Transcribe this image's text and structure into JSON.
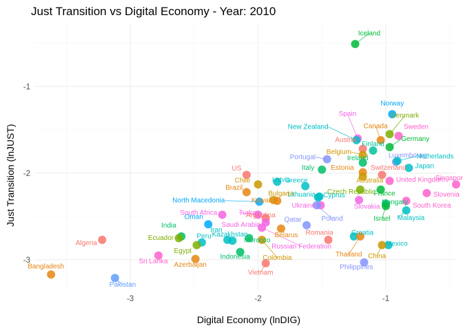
{
  "chart_data": {
    "type": "scatter",
    "title": "Just Transition vs Digital Economy - Year: 2010",
    "xlabel": "Digital Economy (lnDIG)",
    "ylabel": "Just Transition (lnJUST)",
    "xlim": [
      -3.75,
      -0.45
    ],
    "ylim": [
      -3.35,
      -0.28
    ],
    "x_ticks": [
      -3,
      -2,
      -1
    ],
    "y_ticks": [
      -3,
      -2,
      -1
    ],
    "x_tick_labels": [
      "-3",
      "-2",
      "-1"
    ],
    "y_tick_labels": [
      "-3",
      "-2",
      "-1"
    ],
    "grid": true,
    "legend": "none",
    "points": [
      {
        "name": "Iceland",
        "x": -1.24,
        "y": -0.51,
        "color": "#00BA38",
        "lx": -1.13,
        "ly": -0.41,
        "anchor": "middle"
      },
      {
        "name": "Norway",
        "x": -0.95,
        "y": -1.32,
        "color": "#00A9FF",
        "lx": -0.95,
        "ly": -1.22,
        "anchor": "middle"
      },
      {
        "name": "Denmark",
        "x": -0.97,
        "y": -1.55,
        "color": "#7CAE00",
        "lx": -0.85,
        "ly": -1.36,
        "anchor": "middle"
      },
      {
        "name": "Spain",
        "x": -1.22,
        "y": -1.6,
        "color": "#F564E3",
        "lx": -1.3,
        "ly": -1.34,
        "anchor": "middle"
      },
      {
        "name": "New Zealand",
        "x": -1.23,
        "y": -1.62,
        "color": "#00BFC4",
        "lx": -1.45,
        "ly": -1.49,
        "anchor": "end"
      },
      {
        "name": "Canada",
        "x": -1.04,
        "y": -1.62,
        "color": "#E68613",
        "lx": -1.08,
        "ly": -1.48,
        "anchor": "middle"
      },
      {
        "name": "Sweden",
        "x": -0.9,
        "y": -1.57,
        "color": "#FF61CC",
        "lx": -0.86,
        "ly": -1.49,
        "anchor": "start"
      },
      {
        "name": "Austria",
        "x": -1.18,
        "y": -1.72,
        "color": "#F8766D",
        "lx": -1.23,
        "ly": -1.64,
        "anchor": "end"
      },
      {
        "name": "Germany",
        "x": -0.97,
        "y": -1.7,
        "color": "#00BA38",
        "lx": -0.88,
        "ly": -1.63,
        "anchor": "start"
      },
      {
        "name": "Finland",
        "x": -1.1,
        "y": -1.74,
        "color": "#00C19A",
        "lx": -1.1,
        "ly": -1.69,
        "anchor": "middle"
      },
      {
        "name": "Belgium",
        "x": -1.18,
        "y": -1.79,
        "color": "#CD9600",
        "lx": -1.27,
        "ly": -1.78,
        "anchor": "end"
      },
      {
        "name": "Ireland",
        "x": -1.18,
        "y": -1.88,
        "color": "#00BE67",
        "lx": -1.22,
        "ly": -1.85,
        "anchor": "middle"
      },
      {
        "name": "Luxembourg",
        "x": -0.92,
        "y": -1.87,
        "color": "#8494FF",
        "lx": -0.98,
        "ly": -1.82,
        "anchor": "start"
      },
      {
        "name": "Netherlands",
        "x": -0.91,
        "y": -1.86,
        "color": "#00BFC4",
        "lx": -0.76,
        "ly": -1.83,
        "anchor": "start"
      },
      {
        "name": "Portugal",
        "x": -1.46,
        "y": -1.84,
        "color": "#8494FF",
        "lx": -1.55,
        "ly": -1.84,
        "anchor": "end"
      },
      {
        "name": "Japan",
        "x": -0.82,
        "y": -1.94,
        "color": "#00BFC4",
        "lx": -0.77,
        "ly": -1.94,
        "anchor": "start"
      },
      {
        "name": "Switzerland",
        "x": -1.03,
        "y": -2.02,
        "color": "#F8766D",
        "lx": -0.98,
        "ly": -1.96,
        "anchor": "middle"
      },
      {
        "name": "Estonia",
        "x": -1.18,
        "y": -1.99,
        "color": "#E68613",
        "lx": -1.25,
        "ly": -1.96,
        "anchor": "end"
      },
      {
        "name": "Italy",
        "x": -1.5,
        "y": -1.96,
        "color": "#00BE67",
        "lx": -1.56,
        "ly": -1.96,
        "anchor": "end"
      },
      {
        "name": "US",
        "x": -2.09,
        "y": -2.02,
        "color": "#F8766D",
        "lx": -2.13,
        "ly": -1.97,
        "anchor": "end"
      },
      {
        "name": "Singapore",
        "x": -0.45,
        "y": -2.13,
        "color": "#FF61CC",
        "lx": -0.49,
        "ly": -2.08,
        "anchor": "middle"
      },
      {
        "name": "Australia",
        "x": -1.18,
        "y": -2.04,
        "color": "#CD9600",
        "lx": -1.23,
        "ly": -2.11,
        "anchor": "start"
      },
      {
        "name": "United Kingdom",
        "x": -0.97,
        "y": -2.09,
        "color": "#FF61CC",
        "lx": -0.92,
        "ly": -2.1,
        "anchor": "start"
      },
      {
        "name": "Latvia",
        "x": -1.85,
        "y": -2.1,
        "color": "#00BFC4",
        "lx": -1.89,
        "ly": -2.1,
        "anchor": "start"
      },
      {
        "name": "Chile",
        "x": -2.0,
        "y": -2.13,
        "color": "#CD9600",
        "lx": -2.06,
        "ly": -2.11,
        "anchor": "end"
      },
      {
        "name": "Greece",
        "x": -1.63,
        "y": -2.15,
        "color": "#00BFC4",
        "lx": -1.7,
        "ly": -2.11,
        "anchor": "middle"
      },
      {
        "name": "Czech Republic",
        "x": -1.2,
        "y": -2.19,
        "color": "#7CAE00",
        "lx": -1.27,
        "ly": -2.24,
        "anchor": "middle"
      },
      {
        "name": "France",
        "x": -1.04,
        "y": -2.19,
        "color": "#00BA38",
        "lx": -1.01,
        "ly": -2.26,
        "anchor": "middle"
      },
      {
        "name": "Slovenia",
        "x": -0.68,
        "y": -2.23,
        "color": "#FF61CC",
        "lx": -0.63,
        "ly": -2.27,
        "anchor": "start"
      },
      {
        "name": "Brazil",
        "x": -2.09,
        "y": -2.22,
        "color": "#E68613",
        "lx": -2.12,
        "ly": -2.19,
        "anchor": "end"
      },
      {
        "name": "Lithuania",
        "x": -1.52,
        "y": -2.27,
        "color": "#00BFC4",
        "lx": -1.55,
        "ly": -2.27,
        "anchor": "end"
      },
      {
        "name": "Cyprus",
        "x": -1.53,
        "y": -2.28,
        "color": "#00BFC4",
        "lx": -1.49,
        "ly": -2.28,
        "anchor": "start"
      },
      {
        "name": "Bulgaria",
        "x": -1.88,
        "y": -2.31,
        "color": "#CD9600",
        "lx": -1.92,
        "ly": -2.26,
        "anchor": "start"
      },
      {
        "name": "Hungary",
        "x": -1.0,
        "y": -2.35,
        "color": "#00BE67",
        "lx": -1.03,
        "ly": -2.36,
        "anchor": "start"
      },
      {
        "name": "South Korea",
        "x": -0.84,
        "y": -2.32,
        "color": "#FF61CC",
        "lx": -0.79,
        "ly": -2.4,
        "anchor": "start"
      },
      {
        "name": "Slovakia",
        "x": -1.21,
        "y": -2.31,
        "color": "#F564E3",
        "lx": -1.25,
        "ly": -2.41,
        "anchor": "start"
      },
      {
        "name": "Kuwait",
        "x": -1.85,
        "y": -2.32,
        "color": "#E68613",
        "lx": -1.89,
        "ly": -2.34,
        "anchor": "end"
      },
      {
        "name": "North Macedonia",
        "x": -1.99,
        "y": -2.33,
        "color": "#00A9FF",
        "lx": -2.26,
        "ly": -2.34,
        "anchor": "end"
      },
      {
        "name": "Ukraine",
        "x": -1.51,
        "y": -2.37,
        "color": "#F564E3",
        "lx": -1.55,
        "ly": -2.4,
        "anchor": "end"
      },
      {
        "name": "South Africa",
        "x": -2.28,
        "y": -2.48,
        "color": "#F564E3",
        "lx": -2.32,
        "ly": -2.48,
        "anchor": "end"
      },
      {
        "name": "Turkey",
        "x": -2.0,
        "y": -2.48,
        "color": "#F564E3",
        "lx": -2.15,
        "ly": -2.48,
        "anchor": "start"
      },
      {
        "name": "Argentina",
        "x": -1.94,
        "y": -2.52,
        "color": "#F8766D",
        "lx": -1.98,
        "ly": -2.51,
        "anchor": "middle"
      },
      {
        "name": "Malaysia",
        "x": -0.84,
        "y": -2.43,
        "color": "#00BFC4",
        "lx": -0.91,
        "ly": -2.54,
        "anchor": "start"
      },
      {
        "name": "Israel",
        "x": -1.0,
        "y": -2.38,
        "color": "#00BA38",
        "lx": -1.03,
        "ly": -2.55,
        "anchor": "middle"
      },
      {
        "name": "Oman",
        "x": -2.39,
        "y": -2.59,
        "color": "#00A9FF",
        "lx": -2.43,
        "ly": -2.53,
        "anchor": "end"
      },
      {
        "name": "Qatar",
        "x": -1.62,
        "y": -2.6,
        "color": "#8494FF",
        "lx": -1.66,
        "ly": -2.56,
        "anchor": "end"
      },
      {
        "name": "Poland",
        "x": -1.54,
        "y": -2.37,
        "color": "#8494FF",
        "lx": -1.42,
        "ly": -2.55,
        "anchor": "middle"
      },
      {
        "name": "Saudi Arabia",
        "x": -1.94,
        "y": -2.57,
        "color": "#F564E3",
        "lx": -1.98,
        "ly": -2.62,
        "anchor": "end"
      },
      {
        "name": "India",
        "x": -2.6,
        "y": -2.73,
        "color": "#00BE67",
        "lx": -2.64,
        "ly": -2.63,
        "anchor": "end"
      },
      {
        "name": "Iran",
        "x": -2.24,
        "y": -2.77,
        "color": "#00BFC4",
        "lx": -2.28,
        "ly": -2.68,
        "anchor": "end"
      },
      {
        "name": "Belarus",
        "x": -1.82,
        "y": -2.64,
        "color": "#E68613",
        "lx": -1.87,
        "ly": -2.74,
        "anchor": "start"
      },
      {
        "name": "Romania",
        "x": -1.45,
        "y": -2.77,
        "color": "#F8766D",
        "lx": -1.52,
        "ly": -2.71,
        "anchor": "middle"
      },
      {
        "name": "Croatia",
        "x": -1.25,
        "y": -2.73,
        "color": "#00BFC4",
        "lx": -1.27,
        "ly": -2.71,
        "anchor": "start"
      },
      {
        "name": "Kazakhstan",
        "x": -2.2,
        "y": -2.78,
        "color": "#00BFC4",
        "lx": -2.22,
        "ly": -2.73,
        "anchor": "middle"
      },
      {
        "name": "Peru",
        "x": -2.44,
        "y": -2.8,
        "color": "#00BFC4",
        "lx": -2.48,
        "ly": -2.75,
        "anchor": "start"
      },
      {
        "name": "Ecuador",
        "x": -2.62,
        "y": -2.75,
        "color": "#7CAE00",
        "lx": -2.66,
        "ly": -2.77,
        "anchor": "end"
      },
      {
        "name": "Algeria",
        "x": -3.22,
        "y": -2.77,
        "color": "#F8766D",
        "lx": -3.26,
        "ly": -2.83,
        "anchor": "end"
      },
      {
        "name": "Morocco",
        "x": -2.07,
        "y": -2.75,
        "color": "#00BE67",
        "lx": -2.11,
        "ly": -2.8,
        "anchor": "start"
      },
      {
        "name": "Mexico",
        "x": -0.98,
        "y": -2.83,
        "color": "#00BFC4",
        "lx": -1.0,
        "ly": -2.84,
        "anchor": "start"
      },
      {
        "name": "Russian Federation",
        "x": -1.97,
        "y": -2.63,
        "color": "#F564E3",
        "lx": -1.66,
        "ly": -2.87,
        "anchor": "middle"
      },
      {
        "name": "Egypt",
        "x": -2.48,
        "y": -2.83,
        "color": "#7CAE00",
        "lx": -2.52,
        "ly": -2.92,
        "anchor": "end"
      },
      {
        "name": "Thailand",
        "x": -1.2,
        "y": -2.73,
        "color": "#E68613",
        "lx": -1.29,
        "ly": -2.96,
        "anchor": "middle"
      },
      {
        "name": "Indonesia",
        "x": -2.14,
        "y": -2.91,
        "color": "#00BE67",
        "lx": -2.18,
        "ly": -2.99,
        "anchor": "middle"
      },
      {
        "name": "Sri Lanka",
        "x": -2.78,
        "y": -2.95,
        "color": "#FF61CC",
        "lx": -2.82,
        "ly": -3.04,
        "anchor": "middle"
      },
      {
        "name": "Azerbaijan",
        "x": -2.49,
        "y": -2.99,
        "color": "#E68613",
        "lx": -2.53,
        "ly": -3.08,
        "anchor": "middle"
      },
      {
        "name": "Colombia",
        "x": -1.97,
        "y": -2.77,
        "color": "#CD9600",
        "lx": -1.85,
        "ly": -3.0,
        "anchor": "middle"
      },
      {
        "name": "China",
        "x": -1.03,
        "y": -2.83,
        "color": "#CD9600",
        "lx": -1.07,
        "ly": -2.98,
        "anchor": "middle"
      },
      {
        "name": "Philippines",
        "x": -1.17,
        "y": -3.03,
        "color": "#8494FF",
        "lx": -1.23,
        "ly": -3.11,
        "anchor": "middle"
      },
      {
        "name": "Vietnam",
        "x": -1.94,
        "y": -3.04,
        "color": "#F8766D",
        "lx": -1.98,
        "ly": -3.17,
        "anchor": "middle"
      },
      {
        "name": "Bangladesh",
        "x": -3.62,
        "y": -3.17,
        "color": "#E68613",
        "lx": -3.66,
        "ly": -3.1,
        "anchor": "middle"
      },
      {
        "name": "Pakistan",
        "x": -3.12,
        "y": -3.21,
        "color": "#619CFF",
        "lx": -3.06,
        "ly": -3.31,
        "anchor": "middle"
      }
    ]
  }
}
